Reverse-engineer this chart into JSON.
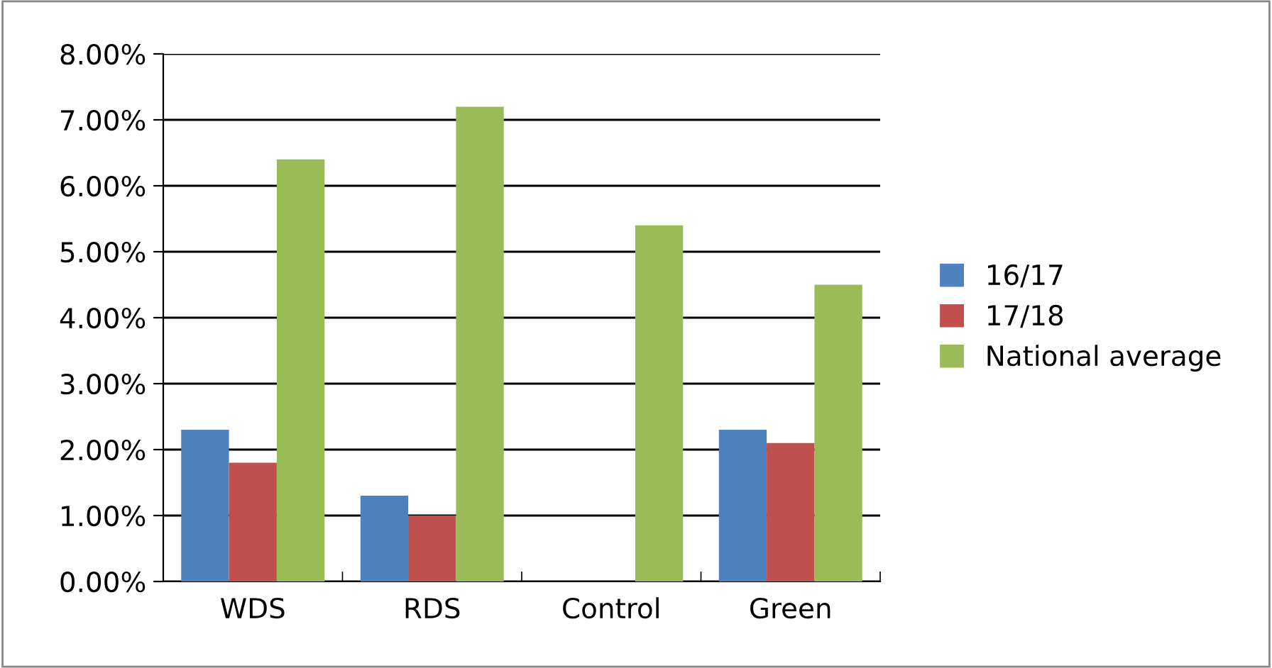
{
  "chart_data": {
    "type": "bar",
    "categories": [
      "WDS",
      "RDS",
      "Control",
      "Green"
    ],
    "series": [
      {
        "name": "16/17",
        "color": "#4f81bd",
        "values": [
          2.3,
          1.3,
          null,
          2.3
        ]
      },
      {
        "name": "17/18",
        "color": "#c0504d",
        "values": [
          1.8,
          1.0,
          null,
          2.1
        ]
      },
      {
        "name": "National average",
        "color": "#9bbb59",
        "values": [
          6.4,
          7.2,
          5.4,
          4.5
        ]
      }
    ],
    "ylim": [
      0,
      8
    ],
    "yticks": [
      {
        "value": 0,
        "label": "0.00%"
      },
      {
        "value": 1,
        "label": "1.00%"
      },
      {
        "value": 2,
        "label": "2.00%"
      },
      {
        "value": 3,
        "label": "3.00%"
      },
      {
        "value": 4,
        "label": "4.00%"
      },
      {
        "value": 5,
        "label": "5.00%"
      },
      {
        "value": 6,
        "label": "6.00%"
      },
      {
        "value": 7,
        "label": "7.00%"
      },
      {
        "value": 8,
        "label": "8.00%"
      }
    ],
    "grid": "y",
    "legend": "right"
  }
}
